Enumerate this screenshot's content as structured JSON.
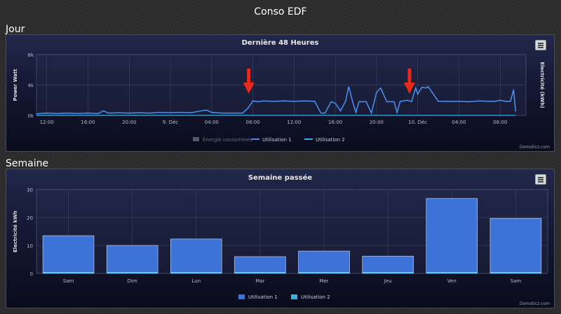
{
  "page": {
    "title": "Conso EDF"
  },
  "day_section": {
    "heading": "Jour",
    "credit": "Domoticz.com",
    "chart_data": {
      "type": "line",
      "title": "Dernière 48 Heures",
      "ylabel": "Power Watt",
      "y2label": "Electricité (kWh)",
      "ylim": [
        0,
        8000
      ],
      "y_ticks": [
        "0k",
        "4k",
        "8k"
      ],
      "x_ticks": [
        "12:00",
        "16:00",
        "20:00",
        "9. Déc",
        "04:00",
        "08:00",
        "12:00",
        "16:00",
        "20:00",
        "10. Déc",
        "04:00",
        "08:00"
      ],
      "legend": [
        "Énergie consommée",
        "Utilisation 1",
        "Utilisation 2"
      ],
      "legend_placement": "bottom",
      "series": [
        {
          "name": "Utilisation 1",
          "x": [
            0,
            1,
            2,
            3,
            4,
            5,
            6,
            6.5,
            7,
            8,
            9,
            10,
            11,
            12,
            13,
            14,
            15,
            16,
            16.5,
            17,
            18,
            19,
            20,
            20.5,
            21,
            21.5,
            22,
            23,
            24,
            25,
            26,
            27,
            27.6,
            28,
            28.6,
            29,
            29.5,
            30,
            30.3,
            30.7,
            31,
            31.3,
            32,
            32.5,
            33,
            33.4,
            34,
            34.7,
            35,
            35.3,
            35.6,
            36,
            36.4,
            36.8,
            37,
            37.4,
            37.8,
            38,
            39,
            40,
            41,
            42,
            43,
            44,
            44.5,
            45,
            45.5,
            46,
            46.3,
            46.5
          ],
          "y": [
            200,
            300,
            250,
            300,
            250,
            300,
            250,
            600,
            300,
            350,
            300,
            350,
            300,
            400,
            350,
            400,
            350,
            600,
            700,
            400,
            300,
            300,
            300,
            900,
            1900,
            1800,
            1900,
            1850,
            1900,
            1850,
            1900,
            1850,
            300,
            300,
            1800,
            1600,
            600,
            1850,
            3800,
            1700,
            400,
            1800,
            1800,
            300,
            3000,
            3600,
            1800,
            1800,
            400,
            1850,
            1900,
            2000,
            1800,
            3600,
            2800,
            3700,
            3600,
            3800,
            1850,
            1850,
            1850,
            1800,
            1900,
            1850,
            1850,
            2000,
            1850,
            1850,
            3400,
            500
          ],
          "color": "#4a8ae8"
        },
        {
          "name": "Utilisation 2",
          "x": [
            0,
            46.5
          ],
          "y": [
            0,
            0
          ],
          "color": "#29b6e8"
        }
      ],
      "annotations": [
        {
          "type": "arrow",
          "x": 20.6
        },
        {
          "type": "arrow",
          "x": 36.2
        }
      ]
    }
  },
  "week_section": {
    "heading": "Semaine",
    "credit": "Domoticz.com",
    "chart_data": {
      "type": "bar",
      "title": "Semaine passée",
      "ylabel": "Electricité kWh",
      "ylim": [
        0,
        30
      ],
      "y_ticks": [
        "0",
        "10",
        "20",
        "30"
      ],
      "categories": [
        "Sam",
        "Dim",
        "Lun",
        "Mar",
        "Mer",
        "Jeu",
        "Ven",
        "Sam"
      ],
      "series": [
        {
          "name": "Utilisation 1",
          "values": [
            13.5,
            10,
            12.3,
            6,
            8,
            6.2,
            26.8,
            19.7
          ],
          "color": "#3d73d6"
        },
        {
          "name": "Utilisation 2",
          "values": [
            0.4,
            0.4,
            0.4,
            0.4,
            0.4,
            0.4,
            0.4,
            0.4
          ],
          "color": "#35b2e0"
        }
      ],
      "legend_placement": "bottom"
    }
  }
}
